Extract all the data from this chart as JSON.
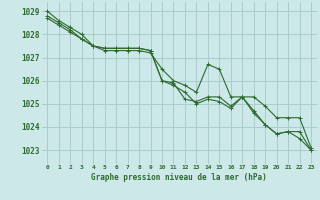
{
  "title": "Graphe pression niveau de la mer (hPa)",
  "background_color": "#cce8e8",
  "grid_color": "#aacccc",
  "line_color": "#2d6a2d",
  "x_labels": [
    "0",
    "1",
    "2",
    "3",
    "4",
    "5",
    "6",
    "7",
    "8",
    "9",
    "10",
    "11",
    "12",
    "13",
    "14",
    "15",
    "16",
    "17",
    "18",
    "19",
    "20",
    "21",
    "22",
    "23"
  ],
  "xlim": [
    -0.5,
    23.5
  ],
  "ylim": [
    1022.4,
    1029.4
  ],
  "yticks": [
    1023,
    1024,
    1025,
    1026,
    1027,
    1028,
    1029
  ],
  "series": [
    [
      1029.0,
      1028.6,
      1028.3,
      1028.0,
      1027.5,
      1027.4,
      1027.4,
      1027.4,
      1027.4,
      1027.3,
      1026.0,
      1025.9,
      1025.2,
      1025.1,
      1025.3,
      1025.3,
      1024.9,
      1025.3,
      1024.7,
      1024.1,
      1023.7,
      1023.8,
      1023.5,
      1023.0
    ],
    [
      1028.8,
      1028.5,
      1028.2,
      1027.8,
      1027.5,
      1027.4,
      1027.4,
      1027.4,
      1027.4,
      1027.3,
      1026.0,
      1025.8,
      1025.5,
      1025.0,
      1025.2,
      1025.1,
      1024.8,
      1025.3,
      1024.6,
      1024.1,
      1023.7,
      1023.8,
      1023.8,
      1023.0
    ],
    [
      1028.7,
      1028.4,
      1028.1,
      1027.8,
      1027.5,
      1027.3,
      1027.3,
      1027.3,
      1027.3,
      1027.2,
      1026.5,
      1026.0,
      1025.8,
      1025.5,
      1026.7,
      1026.5,
      1025.3,
      1025.3,
      1025.3,
      1024.9,
      1024.4,
      1024.4,
      1024.4,
      1023.1
    ]
  ]
}
